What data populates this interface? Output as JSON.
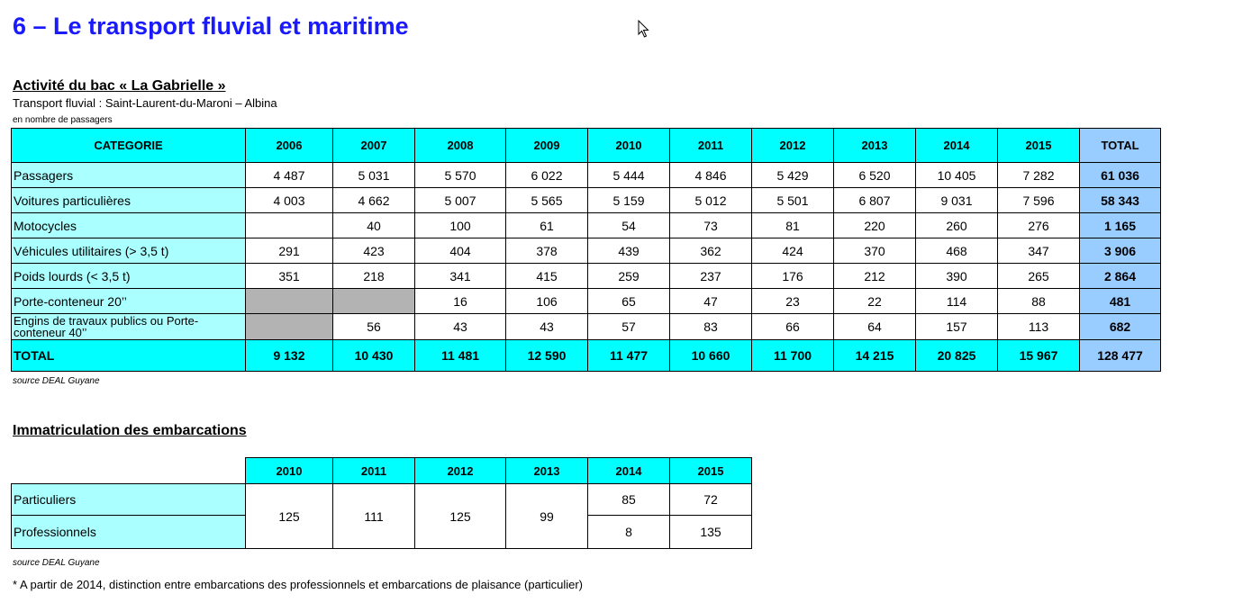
{
  "page": {
    "title": "6 – Le transport fluvial et maritime"
  },
  "bac": {
    "title": "Activité du bac « La Gabrielle »",
    "subtitle": "Transport fluvial : Saint-Laurent-du-Maroni – Albina",
    "unit": "en nombre de passagers",
    "header": {
      "category": "CATEGORIE",
      "years": [
        "2006",
        "2007",
        "2008",
        "2009",
        "2010",
        "2011",
        "2012",
        "2013",
        "2014",
        "2015"
      ],
      "total": "TOTAL"
    },
    "rows": [
      {
        "label": "Passagers",
        "values": [
          "4 487",
          "5 031",
          "5 570",
          "6 022",
          "5 444",
          "4 846",
          "5 429",
          "6 520",
          "10 405",
          "7 282"
        ],
        "total": "61 036"
      },
      {
        "label": "Voitures particulières",
        "values": [
          "4 003",
          "4 662",
          "5 007",
          "5 565",
          "5 159",
          "5 012",
          "5 501",
          "6 807",
          "9 031",
          "7 596"
        ],
        "total": "58 343"
      },
      {
        "label": "Motocycles",
        "values": [
          "",
          "40",
          "100",
          "61",
          "54",
          "73",
          "81",
          "220",
          "260",
          "276"
        ],
        "total": "1 165"
      },
      {
        "label": "Véhicules utilitaires (> 3,5 t)",
        "values": [
          "291",
          "423",
          "404",
          "378",
          "439",
          "362",
          "424",
          "370",
          "468",
          "347"
        ],
        "total": "3 906"
      },
      {
        "label": "Poids lourds (< 3,5 t)",
        "values": [
          "351",
          "218",
          "341",
          "415",
          "259",
          "237",
          "176",
          "212",
          "390",
          "265"
        ],
        "total": "2 864"
      },
      {
        "label": "Porte-conteneur 20’’",
        "values": [
          "",
          "",
          "16",
          "106",
          "65",
          "47",
          "23",
          "22",
          "114",
          "88"
        ],
        "total": "481"
      },
      {
        "label": "Engins de travaux publics ou Porte-conteneur 40’’",
        "values": [
          "",
          "56",
          "43",
          "43",
          "57",
          "83",
          "66",
          "64",
          "157",
          "113"
        ],
        "total": "682"
      }
    ],
    "total_row": {
      "label": "TOTAL",
      "values": [
        "9 132",
        "10 430",
        "11 481",
        "12 590",
        "11 477",
        "10 660",
        "11 700",
        "14 215",
        "20 825",
        "15 967"
      ],
      "total": "128 477"
    },
    "source": "source DEAL Guyane"
  },
  "immat": {
    "title": "Immatriculation des embarcations",
    "years": [
      "2010",
      "2011",
      "2012",
      "2013",
      "2014",
      "2015"
    ],
    "labels": [
      "Particuliers",
      "Professionnels"
    ],
    "merged": [
      "125",
      "111",
      "125",
      "99"
    ],
    "split": {
      "2014": [
        "85",
        "8"
      ],
      "2015": [
        "72",
        "135"
      ]
    },
    "source": "source DEAL Guyane",
    "note": "* A partir de 2014, distinction entre embarcations des professionnels et embarcations de plaisance (particulier)"
  },
  "colors": {
    "title": "#1a1aff",
    "header_fill": "#00ffff",
    "label_fill": "#aaffff",
    "total_fill": "#99ccff",
    "empty_fill": "#b3b3b3"
  },
  "icons": {
    "cursor": "mouse-pointer-icon"
  }
}
